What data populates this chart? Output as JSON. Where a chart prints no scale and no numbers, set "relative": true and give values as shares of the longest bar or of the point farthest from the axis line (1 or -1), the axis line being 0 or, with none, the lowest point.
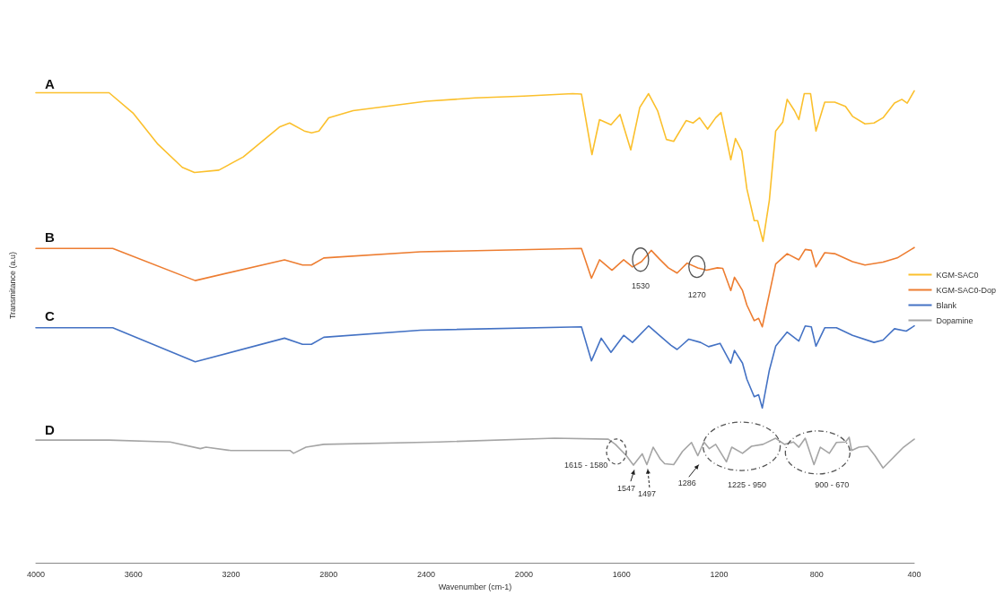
{
  "chart_data": {
    "type": "line",
    "relative": true,
    "xlabel": "Wavenumber (cm-1)",
    "ylabel": "Transmitance (a.u)",
    "xlim": [
      4000,
      400
    ],
    "xticks": [
      4000,
      3600,
      3200,
      2800,
      2400,
      2000,
      1600,
      1200,
      800,
      400
    ],
    "legend": "right",
    "marker": "none",
    "series": [
      {
        "name": "KGM-SAC0",
        "color": "#fbc02d",
        "x": [
          4000,
          3700,
          3600,
          3500,
          3400,
          3350,
          3250,
          3150,
          3000,
          2960,
          2900,
          2870,
          2840,
          2800,
          2700,
          2400,
          2200,
          2000,
          1800,
          1764,
          1721,
          1690,
          1643,
          1606,
          1562,
          1525,
          1489,
          1452,
          1416,
          1386,
          1335,
          1306,
          1280,
          1247,
          1214,
          1192,
          1152,
          1133,
          1107,
          1086,
          1056,
          1042,
          1020,
          994,
          968,
          939,
          921,
          891,
          873,
          851,
          825,
          803,
          767,
          726,
          682,
          653,
          602,
          565,
          528,
          481,
          451,
          429,
          400
        ],
        "values": [
          0.996,
          0.996,
          0.952,
          0.887,
          0.838,
          0.827,
          0.832,
          0.86,
          0.924,
          0.932,
          0.915,
          0.911,
          0.915,
          0.943,
          0.958,
          0.978,
          0.985,
          0.989,
          0.994,
          0.993,
          0.865,
          0.939,
          0.928,
          0.95,
          0.875,
          0.965,
          0.994,
          0.958,
          0.897,
          0.893,
          0.937,
          0.932,
          0.943,
          0.919,
          0.943,
          0.954,
          0.854,
          0.899,
          0.873,
          0.792,
          0.725,
          0.725,
          0.681,
          0.768,
          0.915,
          0.934,
          0.982,
          0.958,
          0.939,
          0.994,
          0.994,
          0.915,
          0.976,
          0.976,
          0.967,
          0.946,
          0.93,
          0.932,
          0.943,
          0.974,
          0.982,
          0.974,
          1.0
        ]
      },
      {
        "name": "KGM-SAC0-Dop",
        "color": "#ed7d31",
        "x": [
          4000,
          3700,
          3685,
          3347,
          2981,
          2907,
          2871,
          2820,
          2424,
          1764,
          1723,
          1690,
          1639,
          1591,
          1555,
          1518,
          1478,
          1445,
          1408,
          1372,
          1331,
          1287,
          1251,
          1207,
          1185,
          1152,
          1137,
          1104,
          1086,
          1056,
          1038,
          1023,
          994,
          968,
          921,
          873,
          847,
          822,
          803,
          767,
          726,
          653,
          602,
          528,
          470,
          400
        ],
        "values": [
          0.666,
          0.666,
          0.666,
          0.598,
          0.642,
          0.631,
          0.631,
          0.646,
          0.659,
          0.666,
          0.603,
          0.642,
          0.62,
          0.642,
          0.627,
          0.638,
          0.662,
          0.644,
          0.625,
          0.614,
          0.635,
          0.625,
          0.62,
          0.625,
          0.624,
          0.577,
          0.605,
          0.577,
          0.546,
          0.513,
          0.518,
          0.5,
          0.57,
          0.633,
          0.655,
          0.642,
          0.664,
          0.662,
          0.627,
          0.657,
          0.655,
          0.638,
          0.631,
          0.637,
          0.646,
          0.668
        ]
      },
      {
        "name": "Blank",
        "color": "#4472c4",
        "x": [
          4000,
          3685,
          3347,
          2981,
          2907,
          2871,
          2820,
          2424,
          1764,
          1723,
          1683,
          1643,
          1591,
          1555,
          1489,
          1445,
          1397,
          1372,
          1324,
          1276,
          1243,
          1196,
          1152,
          1137,
          1104,
          1086,
          1056,
          1038,
          1023,
          994,
          968,
          921,
          873,
          847,
          822,
          803,
          767,
          719,
          653,
          565,
          528,
          481,
          433,
          400
        ],
        "values": [
          0.498,
          0.498,
          0.426,
          0.476,
          0.463,
          0.463,
          0.478,
          0.493,
          0.5,
          0.428,
          0.476,
          0.446,
          0.482,
          0.467,
          0.502,
          0.482,
          0.461,
          0.452,
          0.474,
          0.467,
          0.458,
          0.465,
          0.423,
          0.45,
          0.423,
          0.389,
          0.352,
          0.356,
          0.328,
          0.408,
          0.459,
          0.489,
          0.47,
          0.502,
          0.5,
          0.459,
          0.498,
          0.498,
          0.482,
          0.467,
          0.472,
          0.496,
          0.491,
          0.502
        ]
      },
      {
        "name": "Dopamine",
        "color": "#a5a5a5",
        "x": [
          4000,
          3700,
          3450,
          3326,
          3303,
          3201,
          2959,
          2944,
          2893,
          2820,
          2350,
          1874,
          1654,
          1625,
          1580,
          1551,
          1515,
          1496,
          1470,
          1441,
          1423,
          1386,
          1350,
          1313,
          1287,
          1262,
          1240,
          1214,
          1170,
          1148,
          1104,
          1067,
          1020,
          968,
          932,
          895,
          873,
          847,
          811,
          785,
          748,
          719,
          682,
          667,
          657,
          627,
          591,
          561,
          528,
          492,
          444,
          400
        ],
        "values": [
          0.26,
          0.26,
          0.256,
          0.242,
          0.245,
          0.238,
          0.238,
          0.232,
          0.245,
          0.251,
          0.256,
          0.264,
          0.262,
          0.251,
          0.227,
          0.207,
          0.231,
          0.208,
          0.245,
          0.22,
          0.21,
          0.208,
          0.236,
          0.255,
          0.227,
          0.256,
          0.242,
          0.251,
          0.214,
          0.245,
          0.232,
          0.247,
          0.251,
          0.264,
          0.251,
          0.256,
          0.245,
          0.264,
          0.208,
          0.245,
          0.232,
          0.255,
          0.256,
          0.266,
          0.238,
          0.245,
          0.247,
          0.227,
          0.201,
          0.22,
          0.245,
          0.262
        ]
      }
    ],
    "annotations": [
      "A",
      "B",
      "C",
      "D",
      "1530",
      "1270",
      "1615 - 1580",
      "1547",
      "1497",
      "1286",
      "1225 - 950",
      "900 - 670"
    ]
  }
}
